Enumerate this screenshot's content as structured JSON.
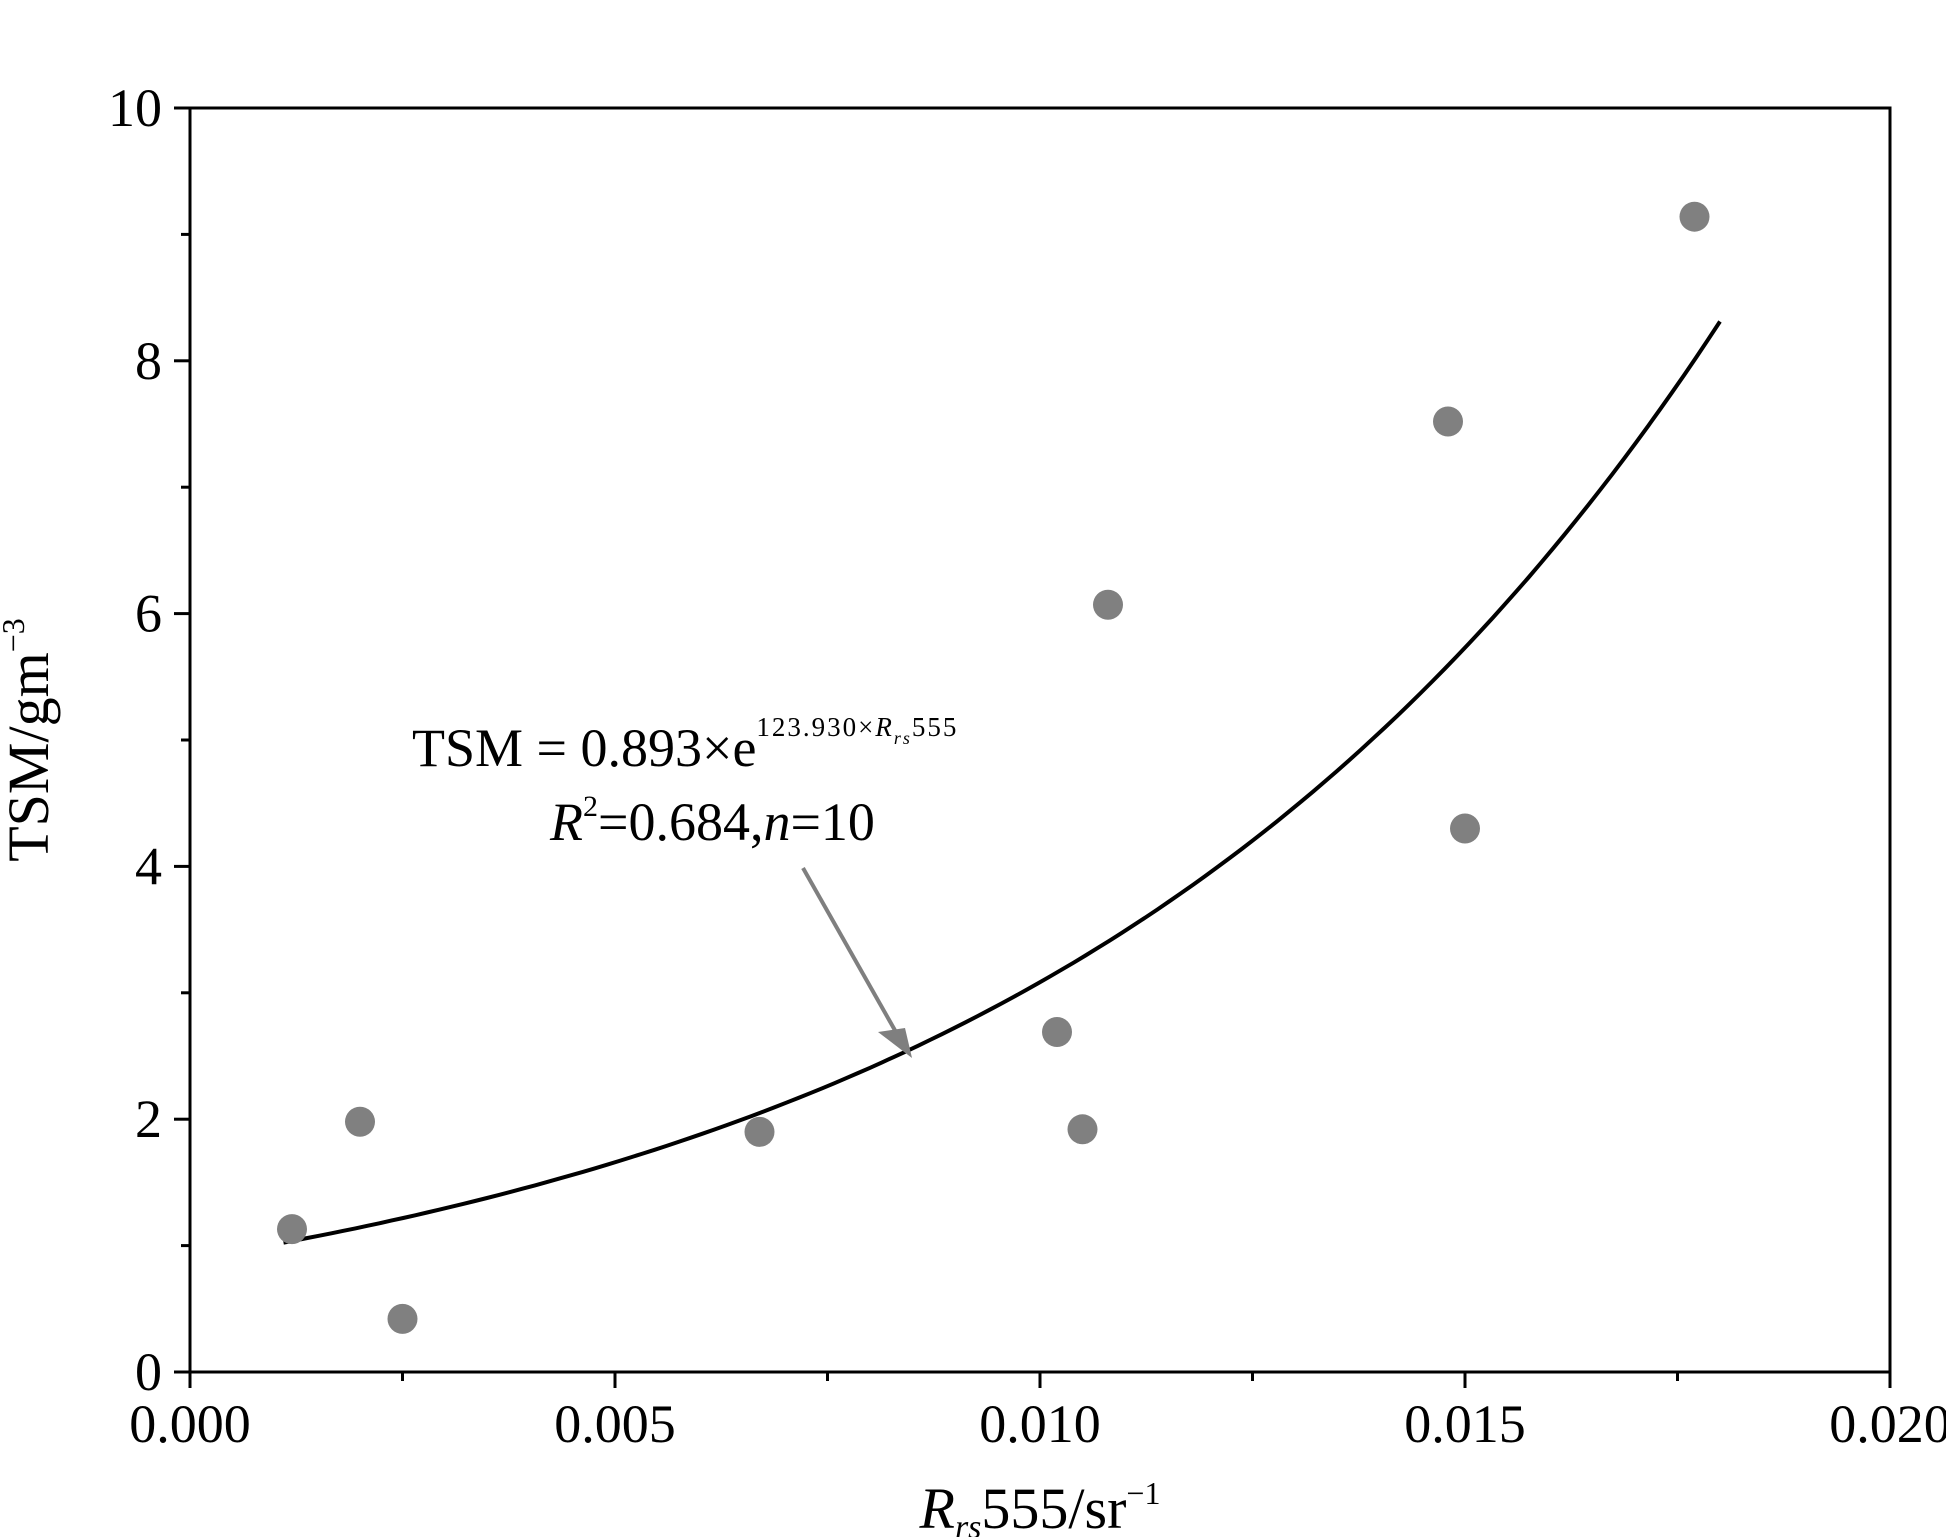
{
  "chart_data": {
    "type": "scatter",
    "title": "",
    "xlabel": {
      "base": "R",
      "sub": "rs",
      "rest": "555/sr",
      "sup": "−1"
    },
    "ylabel": {
      "base": "TSM/gm",
      "sup": "−3"
    },
    "xlim": [
      0.0,
      0.02
    ],
    "ylim": [
      0,
      10
    ],
    "x_ticks": [
      0.0,
      0.005,
      0.01,
      0.015,
      0.02
    ],
    "x_tick_labels": [
      "0.000",
      "0.005",
      "0.010",
      "0.015",
      "0.020"
    ],
    "y_ticks": [
      0,
      2,
      4,
      6,
      8,
      10
    ],
    "y_tick_labels": [
      "0",
      "2",
      "4",
      "6",
      "8",
      "10"
    ],
    "grid": false,
    "points": [
      {
        "x": 0.0012,
        "y": 1.13
      },
      {
        "x": 0.002,
        "y": 1.98
      },
      {
        "x": 0.0025,
        "y": 0.42
      },
      {
        "x": 0.0067,
        "y": 1.9
      },
      {
        "x": 0.0102,
        "y": 2.69
      },
      {
        "x": 0.0105,
        "y": 1.92
      },
      {
        "x": 0.0108,
        "y": 6.07
      },
      {
        "x": 0.0148,
        "y": 7.52
      },
      {
        "x": 0.015,
        "y": 4.3
      },
      {
        "x": 0.0177,
        "y": 9.14
      }
    ],
    "fit": {
      "type": "exponential",
      "a": 0.893,
      "b": 123.93,
      "x_range": [
        0.0011,
        0.018
      ]
    },
    "annotation": {
      "eq_prefix": "TSM = 0.893×e",
      "eq_exp_prefix": "123.930×",
      "eq_exp_R": "R",
      "eq_exp_sub": "rs",
      "eq_exp_suffix": "555",
      "r2_R": "R",
      "r2_sup": "2",
      "r2_mid": "=0.684,",
      "r2_n": "n",
      "r2_end": "=10"
    },
    "colors": {
      "point": "#808080",
      "fit_line": "#000000",
      "arrow": "#7f7f7f",
      "axis": "#000000"
    }
  }
}
